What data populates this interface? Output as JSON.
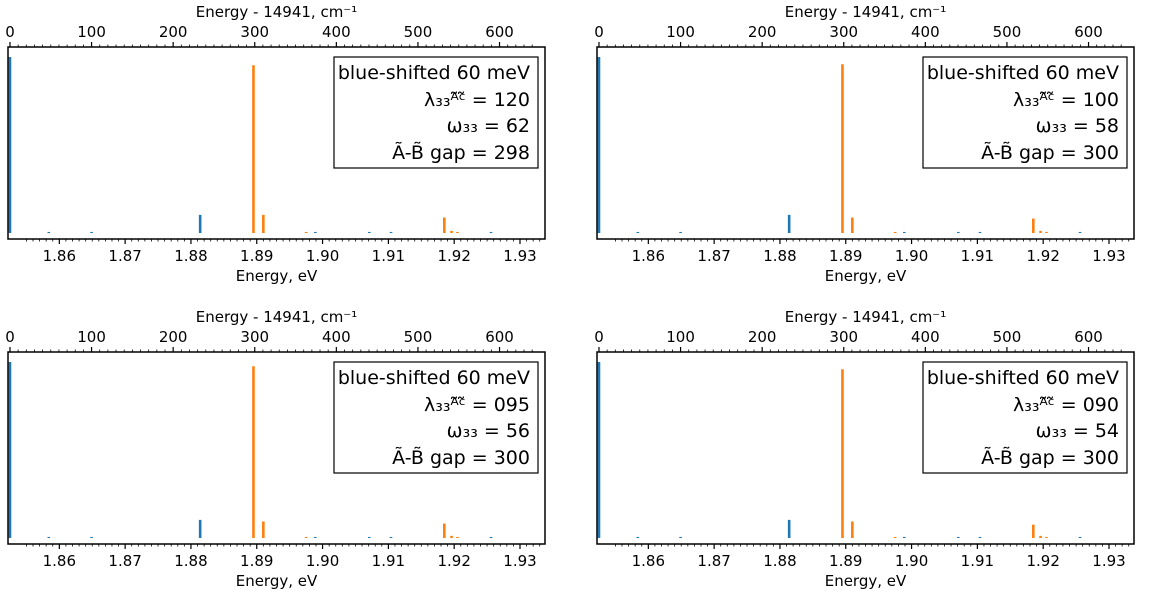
{
  "colors": {
    "blue": "#1f77b4",
    "orange": "#ff7f0e",
    "axis": "#000000"
  },
  "chart_data": [
    {
      "type": "stick-spectrum",
      "xlabel": "Energy, eV",
      "x2label": "Energy - 14941, cm⁻¹",
      "xlim": [
        1.8522,
        1.9338
      ],
      "x_ticks": [
        1.86,
        1.87,
        1.88,
        1.89,
        1.9,
        1.91,
        1.92,
        1.93
      ],
      "x_tick_labels": [
        "1.86",
        "1.87",
        "1.88",
        "1.89",
        "1.90",
        "1.91",
        "1.92",
        "1.93"
      ],
      "x2_ticks": [
        0,
        100,
        200,
        300,
        400,
        500,
        600
      ],
      "x2_tick_labels": [
        "0",
        "100",
        "200",
        "300",
        "400",
        "500",
        "600"
      ],
      "ylim": [
        0,
        1.0
      ],
      "series": [
        {
          "name": "blue",
          "sticks": [
            [
              1.8525,
              1.0
            ],
            [
              1.8584,
              0.006
            ],
            [
              1.8649,
              0.006
            ],
            [
              1.8814,
              0.103
            ],
            [
              1.8989,
              0.006
            ],
            [
              1.9071,
              0.006
            ],
            [
              1.9104,
              0.006
            ],
            [
              1.9256,
              0.006
            ]
          ]
        },
        {
          "name": "orange",
          "sticks": [
            [
              1.8895,
              0.953
            ],
            [
              1.891,
              0.103
            ],
            [
              1.8975,
              0.006
            ],
            [
              1.9185,
              0.088
            ],
            [
              1.9196,
              0.012
            ],
            [
              1.9205,
              0.006
            ]
          ]
        }
      ],
      "legend": {
        "location": "top-right",
        "lines": [
          "blue-shifted 60 meV",
          "λ₃₃ᴬ̃ᶜ̃ = 120",
          "ω₃₃ = 62",
          "Ã-B̃ gap = 298"
        ]
      }
    },
    {
      "type": "stick-spectrum",
      "xlabel": "Energy, eV",
      "x2label": "Energy - 14941, cm⁻¹",
      "xlim": [
        1.8522,
        1.9338
      ],
      "x_ticks": [
        1.86,
        1.87,
        1.88,
        1.89,
        1.9,
        1.91,
        1.92,
        1.93
      ],
      "x_tick_labels": [
        "1.86",
        "1.87",
        "1.88",
        "1.89",
        "1.90",
        "1.91",
        "1.92",
        "1.93"
      ],
      "x2_ticks": [
        0,
        100,
        200,
        300,
        400,
        500,
        600
      ],
      "x2_tick_labels": [
        "0",
        "100",
        "200",
        "300",
        "400",
        "500",
        "600"
      ],
      "ylim": [
        0,
        1.0
      ],
      "series": [
        {
          "name": "blue",
          "sticks": [
            [
              1.8525,
              1.0
            ],
            [
              1.8584,
              0.006
            ],
            [
              1.8649,
              0.006
            ],
            [
              1.8814,
              0.103
            ],
            [
              1.8989,
              0.006
            ],
            [
              1.9071,
              0.006
            ],
            [
              1.9104,
              0.006
            ],
            [
              1.9256,
              0.006
            ]
          ]
        },
        {
          "name": "orange",
          "sticks": [
            [
              1.8895,
              0.959
            ],
            [
              1.891,
              0.088
            ],
            [
              1.8975,
              0.006
            ],
            [
              1.9185,
              0.082
            ],
            [
              1.9196,
              0.012
            ],
            [
              1.9205,
              0.006
            ]
          ]
        }
      ],
      "legend": {
        "location": "top-right",
        "lines": [
          "blue-shifted 60 meV",
          "λ₃₃ᴬ̃ᶜ̃ = 100",
          "ω₃₃ = 58",
          "Ã-B̃ gap = 300"
        ]
      }
    },
    {
      "type": "stick-spectrum",
      "xlabel": "Energy, eV",
      "x2label": "Energy - 14941, cm⁻¹",
      "xlim": [
        1.8522,
        1.9338
      ],
      "x_ticks": [
        1.86,
        1.87,
        1.88,
        1.89,
        1.9,
        1.91,
        1.92,
        1.93
      ],
      "x_tick_labels": [
        "1.86",
        "1.87",
        "1.88",
        "1.89",
        "1.90",
        "1.91",
        "1.92",
        "1.93"
      ],
      "x2_ticks": [
        0,
        100,
        200,
        300,
        400,
        500,
        600
      ],
      "x2_tick_labels": [
        "0",
        "100",
        "200",
        "300",
        "400",
        "500",
        "600"
      ],
      "ylim": [
        0,
        1.0
      ],
      "series": [
        {
          "name": "blue",
          "sticks": [
            [
              1.8525,
              1.0
            ],
            [
              1.8584,
              0.006
            ],
            [
              1.8649,
              0.006
            ],
            [
              1.8814,
              0.103
            ],
            [
              1.8989,
              0.006
            ],
            [
              1.9071,
              0.006
            ],
            [
              1.9104,
              0.006
            ],
            [
              1.9256,
              0.006
            ]
          ]
        },
        {
          "name": "orange",
          "sticks": [
            [
              1.8895,
              0.976
            ],
            [
              1.891,
              0.094
            ],
            [
              1.8975,
              0.006
            ],
            [
              1.9185,
              0.082
            ],
            [
              1.9196,
              0.012
            ],
            [
              1.9205,
              0.006
            ]
          ]
        }
      ],
      "legend": {
        "location": "top-right",
        "lines": [
          "blue-shifted 60 meV",
          "λ₃₃ᴬ̃ᶜ̃ = 095",
          "ω₃₃ = 56",
          "Ã-B̃ gap = 300"
        ]
      }
    },
    {
      "type": "stick-spectrum",
      "xlabel": "Energy, eV",
      "x2label": "Energy - 14941, cm⁻¹",
      "xlim": [
        1.8522,
        1.9338
      ],
      "x_ticks": [
        1.86,
        1.87,
        1.88,
        1.89,
        1.9,
        1.91,
        1.92,
        1.93
      ],
      "x_tick_labels": [
        "1.86",
        "1.87",
        "1.88",
        "1.89",
        "1.90",
        "1.91",
        "1.92",
        "1.93"
      ],
      "x2_ticks": [
        0,
        100,
        200,
        300,
        400,
        500,
        600
      ],
      "x2_tick_labels": [
        "0",
        "100",
        "200",
        "300",
        "400",
        "500",
        "600"
      ],
      "ylim": [
        0,
        1.0
      ],
      "series": [
        {
          "name": "blue",
          "sticks": [
            [
              1.8525,
              1.0
            ],
            [
              1.8584,
              0.006
            ],
            [
              1.8649,
              0.006
            ],
            [
              1.8814,
              0.103
            ],
            [
              1.8989,
              0.006
            ],
            [
              1.9071,
              0.006
            ],
            [
              1.9104,
              0.006
            ],
            [
              1.9256,
              0.006
            ]
          ]
        },
        {
          "name": "orange",
          "sticks": [
            [
              1.8895,
              0.959
            ],
            [
              1.891,
              0.094
            ],
            [
              1.8975,
              0.006
            ],
            [
              1.9185,
              0.076
            ],
            [
              1.9196,
              0.012
            ],
            [
              1.9205,
              0.006
            ]
          ]
        }
      ],
      "legend": {
        "location": "top-right",
        "lines": [
          "blue-shifted 60 meV",
          "λ₃₃ᴬ̃ᶜ̃ = 090",
          "ω₃₃ = 54",
          "Ã-B̃ gap = 300"
        ]
      }
    }
  ]
}
